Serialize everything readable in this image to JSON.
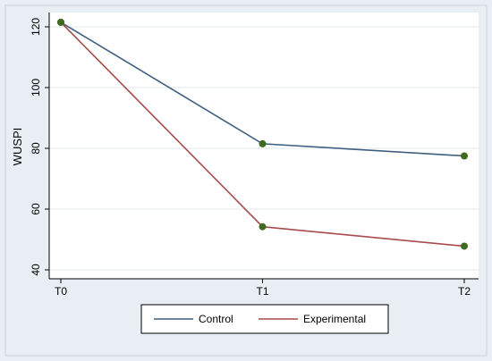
{
  "chart_data": {
    "type": "line",
    "categories": [
      "T0",
      "T1",
      "T2"
    ],
    "series": [
      {
        "name": "Control",
        "values": [
          121.5,
          81.5,
          77.5
        ],
        "color": "#3f5f7f"
      },
      {
        "name": "Experimental",
        "values": [
          121.5,
          54.2,
          47.8
        ],
        "color": "#a84a4a"
      }
    ],
    "marker_color": "#3f6a1f",
    "xlabel": "",
    "ylabel": "WUSPI",
    "ylim": [
      40,
      120
    ],
    "yticks": [
      40,
      60,
      80,
      100,
      120
    ],
    "grid": "horizontal",
    "legend_position": "bottom",
    "background_outer": "#e8eef3",
    "background_plot": "#ffffff"
  }
}
